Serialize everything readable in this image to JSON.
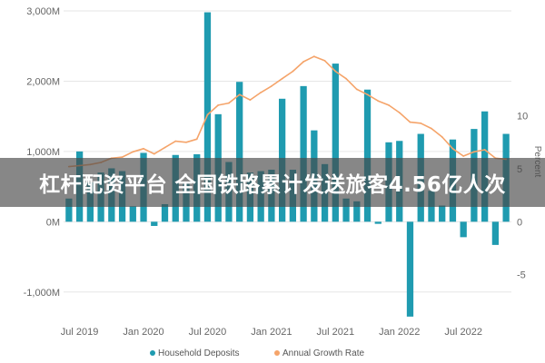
{
  "banner": {
    "headline": "杠杆配资平台 全国铁路累计发送旅客4.56亿人次"
  },
  "colors": {
    "bars": "#1f9bb0",
    "line": "#f5a46a",
    "banner_bg": "#464646"
  },
  "chart_data": {
    "type": "bar+line",
    "title": "",
    "xlabel": "",
    "ylabel_left": "",
    "ylabel_right": "Percent",
    "legend": {
      "placement": "bottom",
      "entries": [
        "Household Deposits",
        "Annual Growth Rate"
      ]
    },
    "left_axis": {
      "ylim": [
        -1300,
        3000
      ],
      "ticks": [
        {
          "value": 3000,
          "label": "3,000M"
        },
        {
          "value": 2000,
          "label": "2,000M"
        },
        {
          "value": 1000,
          "label": "1,000M"
        },
        {
          "value": 0,
          "label": "0M"
        },
        {
          "value": -1000,
          "label": "-1,000M"
        }
      ]
    },
    "right_axis": {
      "ylim": [
        -8.62,
        19.9
      ],
      "ticks": [
        {
          "value": 10,
          "label": "10"
        },
        {
          "value": 5,
          "label": "5"
        },
        {
          "value": 0,
          "label": "0"
        },
        {
          "value": -5,
          "label": "-5"
        }
      ]
    },
    "x_tick_labels": [
      {
        "label": "Jul 2019",
        "index": 1.5
      },
      {
        "label": "Jan 2020",
        "index": 7.5
      },
      {
        "label": "Jul 2020",
        "index": 13.5
      },
      {
        "label": "Jan 2021",
        "index": 19.5
      },
      {
        "label": "Jul 2021",
        "index": 25.5
      },
      {
        "label": "Jan 2022",
        "index": 31.5
      },
      {
        "label": "Jul 2022",
        "index": 37.5
      }
    ],
    "series": [
      {
        "name": "Household Deposits",
        "type": "bar",
        "axis": "left",
        "values": [
          330,
          1000,
          560,
          700,
          760,
          720,
          220,
          980,
          -60,
          250,
          950,
          540,
          960,
          2980,
          1530,
          850,
          1990,
          700,
          720,
          740,
          1750,
          740,
          1930,
          1300,
          820,
          2250,
          330,
          290,
          1880,
          -30,
          1130,
          1150,
          -1350,
          1250,
          440,
          230,
          1170,
          -220,
          1320,
          1570,
          -330,
          1250
        ]
      },
      {
        "name": "Annual Growth Rate",
        "type": "line",
        "axis": "right",
        "values": [
          5.2,
          5.3,
          5.4,
          5.6,
          6.0,
          6.1,
          6.6,
          6.9,
          6.4,
          7.0,
          7.6,
          7.5,
          7.8,
          10.1,
          11.0,
          11.2,
          12.0,
          11.5,
          12.2,
          12.8,
          13.5,
          14.2,
          15.1,
          15.6,
          15.2,
          14.2,
          13.5,
          12.5,
          12.0,
          11.4,
          11.0,
          10.3,
          9.4,
          9.3,
          8.8,
          8.0,
          6.9,
          6.2,
          6.6,
          6.8,
          6.0,
          5.9
        ]
      }
    ]
  }
}
